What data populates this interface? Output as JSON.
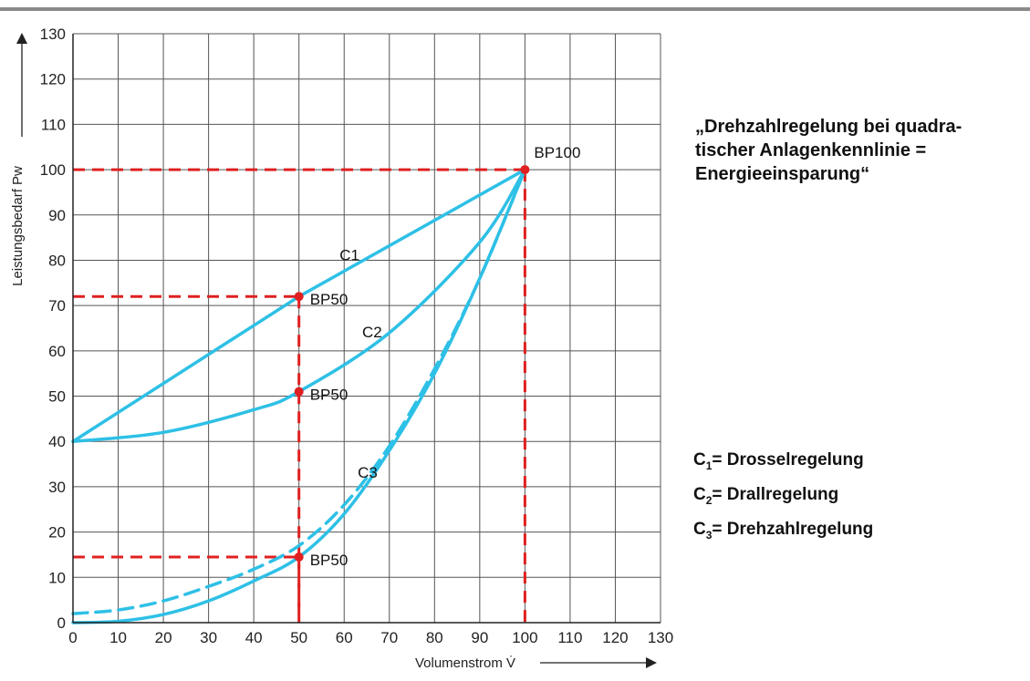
{
  "title_lines": [
    "„Drehzahlregelung bei quadra-",
    "tischer Anlagenkennlinie =",
    "Energieeinsparung“"
  ],
  "legend": [
    {
      "symbol": "C",
      "index": "1",
      "text": "= Drosselregelung"
    },
    {
      "symbol": "C",
      "index": "2",
      "text": "= Drallregelung"
    },
    {
      "symbol": "C",
      "index": "3",
      "text": "= Drehzahlregelung"
    }
  ],
  "colors": {
    "curve": "#2ec0e6",
    "reference": "#e02020",
    "grid": "#555555"
  },
  "chart_data": {
    "type": "line",
    "xlabel": "Volumenstrom V̇",
    "ylabel": "Leistungsbedarf Pw",
    "xlim": [
      0,
      130
    ],
    "ylim": [
      0,
      130
    ],
    "xticks": [
      0,
      10,
      20,
      30,
      40,
      50,
      60,
      70,
      80,
      90,
      100,
      110,
      120,
      130
    ],
    "yticks": [
      0,
      10,
      20,
      30,
      40,
      50,
      60,
      70,
      80,
      90,
      100,
      110,
      120,
      130
    ],
    "grid": true,
    "series": [
      {
        "name": "C1",
        "style": "solid",
        "x": [
          0,
          50,
          100
        ],
        "y": [
          40,
          72,
          100
        ]
      },
      {
        "name": "C2",
        "style": "solid",
        "x": [
          0,
          20,
          40,
          50,
          70,
          90,
          100
        ],
        "y": [
          40,
          42,
          47,
          51,
          64,
          84,
          100
        ]
      },
      {
        "name": "C3",
        "style": "solid",
        "x": [
          0,
          10,
          20,
          30,
          40,
          50,
          60,
          70,
          80,
          90,
          100
        ],
        "y": [
          0,
          0.3,
          1.8,
          4.8,
          9.2,
          14.5,
          24,
          38,
          55,
          76,
          100
        ]
      },
      {
        "style": "dashed",
        "x": [
          0,
          10,
          20,
          30,
          40,
          50,
          60,
          70,
          80,
          90,
          100
        ],
        "y": [
          2,
          2.8,
          4.8,
          8,
          11.8,
          17,
          26,
          39,
          56,
          76,
          100
        ]
      }
    ],
    "points": [
      {
        "label": "BP100",
        "x": 100,
        "y": 100
      },
      {
        "label": "BP50",
        "x": 50,
        "y": 72
      },
      {
        "label": "BP50",
        "x": 50,
        "y": 51
      },
      {
        "label": "BP50",
        "x": 50,
        "y": 14.5
      }
    ],
    "reference_lines": [
      {
        "x": 100,
        "y": 100
      },
      {
        "x": 50,
        "y": 72
      },
      {
        "x": 50,
        "y": 14.5
      }
    ],
    "curve_labels": [
      {
        "text": "C1",
        "x": 59,
        "y": 80
      },
      {
        "text": "C2",
        "x": 64,
        "y": 63
      },
      {
        "text": "C3",
        "x": 63,
        "y": 32
      }
    ]
  }
}
